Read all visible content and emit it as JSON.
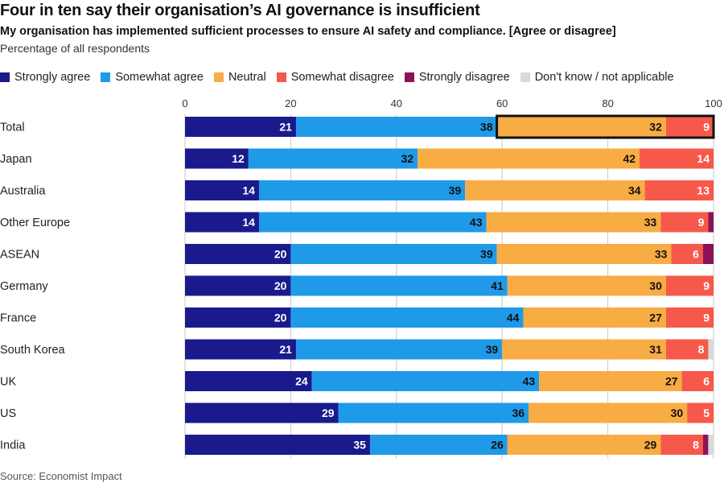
{
  "title": "Four in ten say their organisation’s AI governance is insufficient",
  "subtitle": "My organisation has implemented sufficient processes to ensure AI safety and compliance. [Agree or disagree]",
  "unit": "Percentage of all respondents",
  "source": "Source: Economist Impact",
  "legend": [
    {
      "label": "Strongly agree",
      "color": "#1a1a8c"
    },
    {
      "label": "Somewhat agree",
      "color": "#1f9ae8"
    },
    {
      "label": "Neutral",
      "color": "#f8ac44"
    },
    {
      "label": "Somewhat disagree",
      "color": "#f6594a"
    },
    {
      "label": "Strongly disagree",
      "color": "#8c1256"
    },
    {
      "label": "Don't know / not applicable",
      "color": "#d9d9d9"
    }
  ],
  "chart_data": {
    "type": "bar",
    "orientation": "horizontal",
    "stacked": true,
    "xlim": [
      0,
      100
    ],
    "xticks": [
      0,
      20,
      40,
      60,
      80,
      100
    ],
    "grid": true,
    "legend_position": "top",
    "categories": [
      "Total",
      "Japan",
      "Australia",
      "Other Europe",
      "ASEAN",
      "Germany",
      "France",
      "South Korea",
      "UK",
      "US",
      "India"
    ],
    "series": [
      {
        "name": "Strongly agree",
        "color": "#1a1a8c",
        "values": [
          21,
          12,
          14,
          14,
          20,
          20,
          20,
          21,
          24,
          29,
          35
        ]
      },
      {
        "name": "Somewhat agree",
        "color": "#1f9ae8",
        "values": [
          38,
          32,
          39,
          43,
          39,
          41,
          44,
          39,
          43,
          36,
          26
        ]
      },
      {
        "name": "Neutral",
        "color": "#f8ac44",
        "values": [
          32,
          42,
          34,
          33,
          33,
          30,
          27,
          31,
          27,
          30,
          29
        ]
      },
      {
        "name": "Somewhat disagree",
        "color": "#f6594a",
        "values": [
          9,
          14,
          13,
          9,
          6,
          9,
          9,
          8,
          6,
          5,
          8
        ]
      },
      {
        "name": "Strongly disagree",
        "color": "#8c1256",
        "values": [
          0,
          0,
          0,
          1,
          2,
          0,
          0,
          0,
          0,
          0,
          1
        ]
      },
      {
        "name": "Don't know / not applicable",
        "color": "#d9d9d9",
        "values": [
          0,
          0,
          0,
          0,
          0,
          0,
          0,
          1,
          0,
          0,
          1
        ]
      }
    ],
    "highlight": {
      "category": "Total",
      "from": 59,
      "to": 100
    }
  }
}
